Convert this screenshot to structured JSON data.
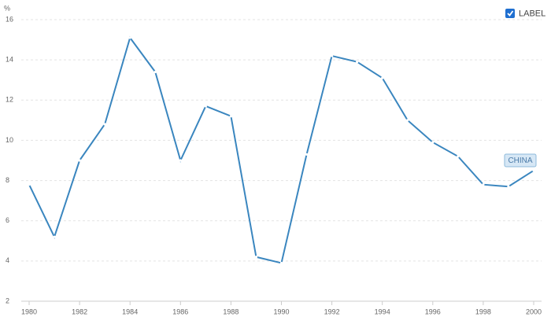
{
  "chart_data": {
    "type": "line",
    "y_label": "%",
    "x": [
      1980,
      1981,
      1982,
      1983,
      1984,
      1985,
      1986,
      1987,
      1988,
      1989,
      1990,
      1991,
      1992,
      1993,
      1994,
      1995,
      1996,
      1997,
      1998,
      1999,
      2000
    ],
    "series": [
      {
        "name": "LABEL",
        "color": "#3a86bf",
        "values": [
          7.8,
          5.2,
          9.0,
          10.8,
          15.1,
          13.4,
          9.0,
          11.7,
          11.2,
          4.2,
          3.9,
          9.3,
          14.2,
          13.9,
          13.1,
          11.0,
          9.9,
          9.2,
          7.8,
          7.7,
          8.5
        ]
      }
    ],
    "annotation": "CHINA",
    "xlim": [
      1980,
      2000
    ],
    "xticks": [
      1980,
      1982,
      1984,
      1986,
      1988,
      1990,
      1992,
      1994,
      1996,
      1998,
      2000
    ],
    "ylim": [
      2,
      16
    ],
    "yticks": [
      2,
      4,
      6,
      8,
      10,
      12,
      14,
      16
    ],
    "grid": true
  }
}
